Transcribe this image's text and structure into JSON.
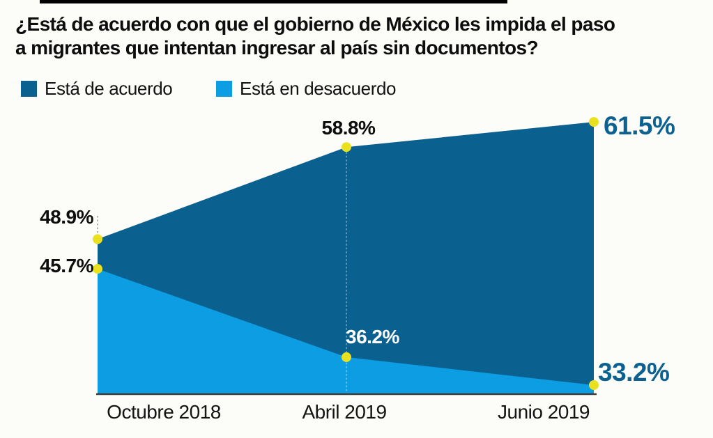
{
  "page": {
    "background": "#fcfcf9",
    "top_bar_color": "#000000"
  },
  "header": {
    "title_lines": [
      "¿Está de acuerdo con que el gobierno de México les impida el paso",
      "a migrantes que intentan ingresar al país sin documentos?"
    ]
  },
  "legend": {
    "items": [
      {
        "label": "Está de acuerdo",
        "color": "#0a6190"
      },
      {
        "label": "Está en desacuerdo",
        "color": "#0d9de2"
      }
    ]
  },
  "chart_data": {
    "type": "area",
    "title": "¿Está de acuerdo con que el gobierno de México les impida el paso a migrantes que intentan ingresar al país sin documentos?",
    "categories": [
      "Octubre 2018",
      "Abril 2019",
      "Junio 2019"
    ],
    "series": [
      {
        "name": "Está de acuerdo",
        "color": "#0a6190",
        "values": [
          48.9,
          58.8,
          61.5
        ],
        "labels": [
          "48.9%",
          "58.8%",
          "61.5%"
        ]
      },
      {
        "name": "Está en desacuerdo",
        "color": "#0d9de2",
        "values": [
          45.7,
          36.2,
          33.2
        ],
        "labels": [
          "45.7%",
          "36.2%",
          "33.2%"
        ]
      }
    ],
    "marker_color": "#e9e120",
    "axis_color": "#3d3d3d",
    "label_colors": {
      "default": "#0d0d0d",
      "on_area": "#ffffff",
      "highlight": "#0c6191"
    },
    "grid": false,
    "legend_position": "top"
  }
}
